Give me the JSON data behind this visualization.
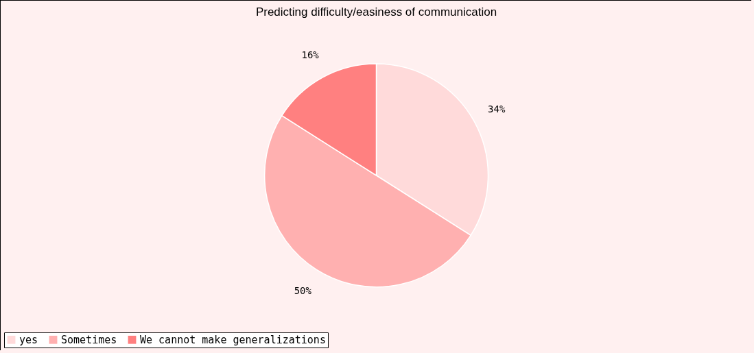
{
  "chart_data": {
    "type": "pie",
    "title": "Predicting difficulty/easiness of communication",
    "categories": [
      "yes",
      "Sometimes",
      "We cannot make generalizations"
    ],
    "values": [
      34,
      50,
      16
    ],
    "colors": [
      "#ffdada",
      "#ffb0b0",
      "#ff8080"
    ],
    "value_labels": [
      "34%",
      "50%",
      "16%"
    ],
    "legend": "bottom"
  }
}
